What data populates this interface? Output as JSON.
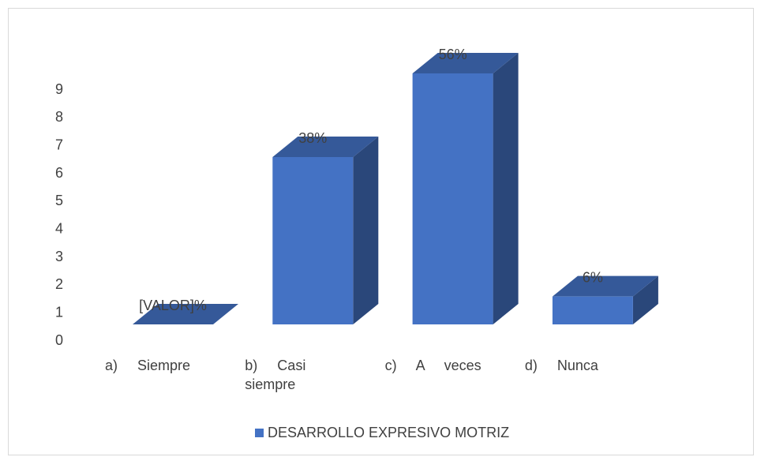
{
  "chart_data": {
    "type": "bar3d",
    "categories": [
      "a) Siempre",
      "b) Casi siempre",
      "c) A veces",
      "d) Nunca"
    ],
    "series": [
      {
        "name": "DESARROLLO EXPRESIVO MOTRIZ",
        "color": "#4472c4",
        "values": [
          0,
          6,
          9,
          1
        ],
        "value_labels": [
          "[VALOR]%",
          "38%",
          "56%",
          "6%"
        ]
      }
    ],
    "ylim": [
      0,
      9
    ],
    "yticks": [
      0,
      1,
      2,
      3,
      4,
      5,
      6,
      7,
      8,
      9
    ],
    "legend": "bottom"
  }
}
